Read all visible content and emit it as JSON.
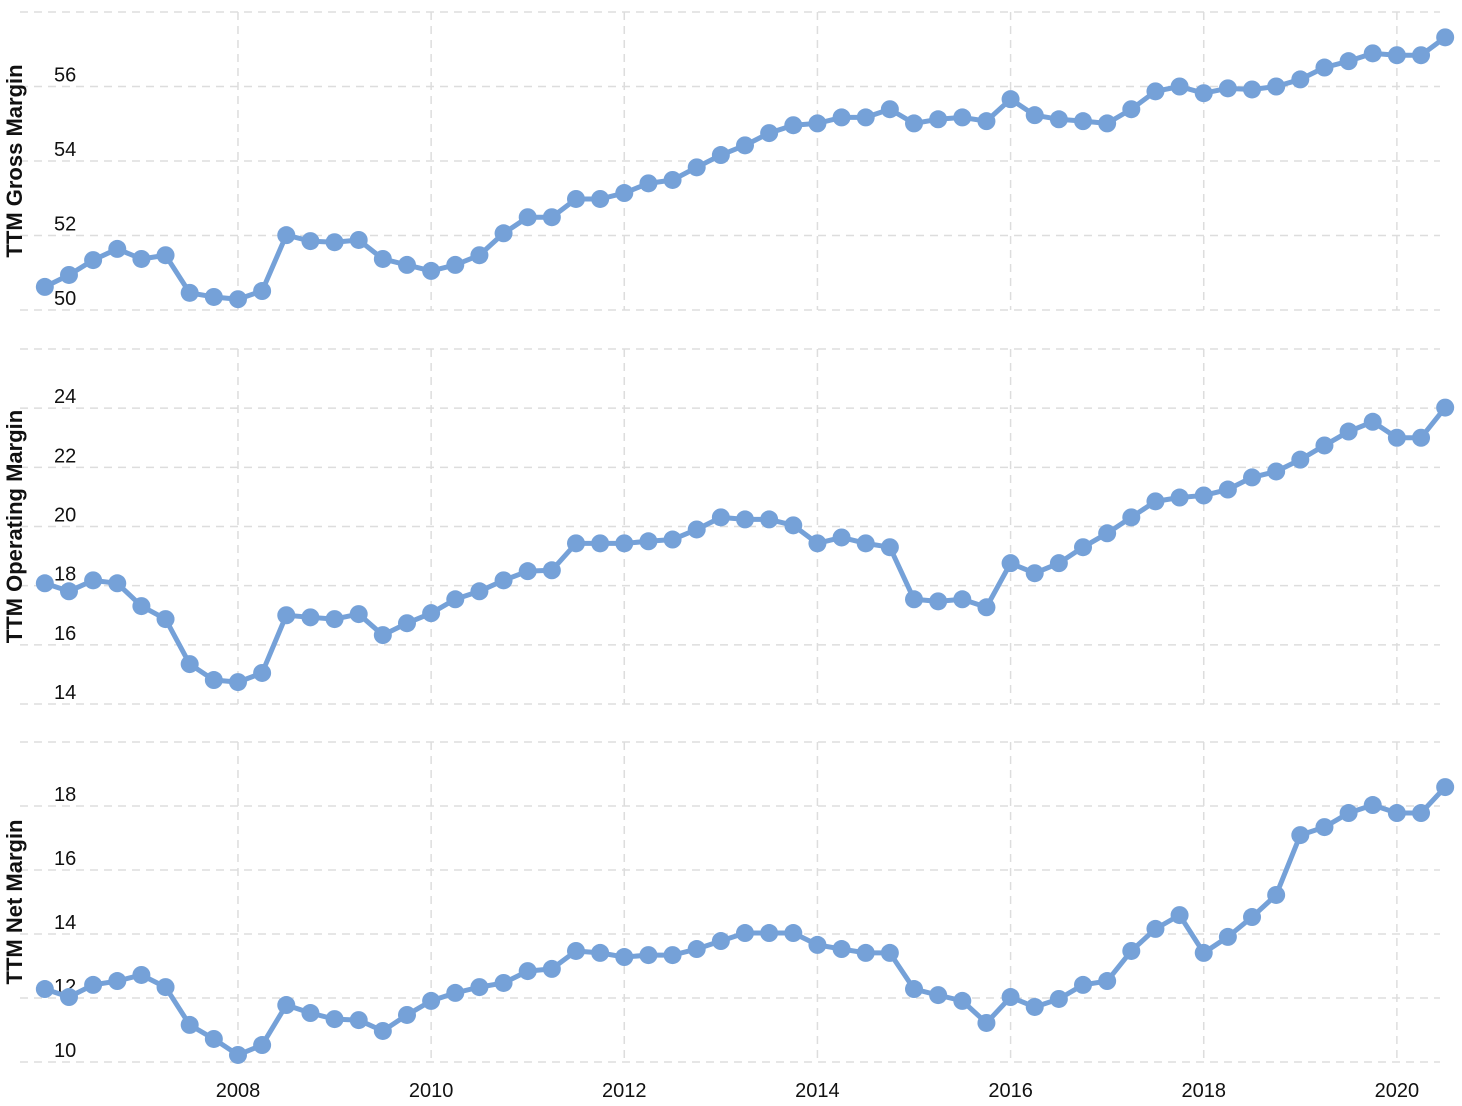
{
  "chart_data": [
    {
      "type": "line",
      "ylabel": "TTM Gross Margin",
      "color": "#75a1d8",
      "grid": true,
      "x": [
        2006,
        2006.25,
        2006.5,
        2006.75,
        2007,
        2007.25,
        2007.5,
        2007.75,
        2008,
        2008.25,
        2008.5,
        2008.75,
        2009,
        2009.25,
        2009.5,
        2009.75,
        2010,
        2010.25,
        2010.5,
        2010.75,
        2011,
        2011.25,
        2011.5,
        2011.75,
        2012,
        2012.25,
        2012.5,
        2012.75,
        2013,
        2013.25,
        2013.5,
        2013.75,
        2014,
        2014.25,
        2014.5,
        2014.75,
        2015,
        2015.25,
        2015.5,
        2015.75,
        2016,
        2016.25,
        2016.5,
        2016.75,
        2017,
        2017.25,
        2017.5,
        2017.75,
        2018,
        2018.25,
        2018.5,
        2018.75,
        2019,
        2019.25,
        2019.5,
        2019.75,
        2020,
        2020.25,
        2020.5
      ],
      "values": [
        50.62,
        50.94,
        51.34,
        51.64,
        51.37,
        51.47,
        50.46,
        50.35,
        50.29,
        50.51,
        52.01,
        51.85,
        51.82,
        51.88,
        51.37,
        51.21,
        51.05,
        51.21,
        51.47,
        52.06,
        52.49,
        52.49,
        52.98,
        52.98,
        53.14,
        53.4,
        53.49,
        53.83,
        54.16,
        54.42,
        54.75,
        54.96,
        55.01,
        55.17,
        55.17,
        55.39,
        55.01,
        55.12,
        55.17,
        55.07,
        55.66,
        55.23,
        55.12,
        55.07,
        55.01,
        55.39,
        55.87,
        56.0,
        55.82,
        55.95,
        55.92,
        56.0,
        56.19,
        56.51,
        56.68,
        56.89,
        56.84,
        56.84,
        57.32
      ],
      "xlim": [
        2005.95,
        2020.55
      ],
      "ylim": [
        50,
        58
      ],
      "yticks": [
        50,
        52,
        54,
        56
      ]
    },
    {
      "type": "line",
      "ylabel": "TTM Operating Margin",
      "color": "#75a1d8",
      "grid": true,
      "x": [
        2006,
        2006.25,
        2006.5,
        2006.75,
        2007,
        2007.25,
        2007.5,
        2007.75,
        2008,
        2008.25,
        2008.5,
        2008.75,
        2009,
        2009.25,
        2009.5,
        2009.75,
        2010,
        2010.25,
        2010.5,
        2010.75,
        2011,
        2011.25,
        2011.5,
        2011.75,
        2012,
        2012.25,
        2012.5,
        2012.75,
        2013,
        2013.25,
        2013.5,
        2013.75,
        2014,
        2014.25,
        2014.5,
        2014.75,
        2015,
        2015.25,
        2015.5,
        2015.75,
        2016,
        2016.25,
        2016.5,
        2016.75,
        2017,
        2017.25,
        2017.5,
        2017.75,
        2018,
        2018.25,
        2018.5,
        2018.75,
        2019,
        2019.25,
        2019.5,
        2019.75,
        2020,
        2020.25,
        2020.5
      ],
      "values": [
        18.08,
        17.81,
        18.18,
        18.08,
        17.31,
        16.87,
        15.35,
        14.81,
        14.74,
        15.05,
        17.0,
        16.93,
        16.87,
        17.04,
        16.33,
        16.73,
        17.07,
        17.54,
        17.81,
        18.18,
        18.49,
        18.52,
        19.43,
        19.43,
        19.43,
        19.5,
        19.56,
        19.9,
        20.31,
        20.24,
        20.24,
        20.04,
        19.43,
        19.63,
        19.43,
        19.3,
        17.54,
        17.47,
        17.54,
        17.27,
        18.76,
        18.42,
        18.76,
        19.3,
        19.77,
        20.31,
        20.85,
        20.98,
        21.05,
        21.25,
        21.66,
        21.86,
        22.26,
        22.74,
        23.21,
        23.54,
        23.0,
        23.0,
        24.02
      ],
      "xlim": [
        2005.95,
        2020.55
      ],
      "ylim": [
        14,
        26
      ],
      "yticks": [
        14,
        16,
        18,
        20,
        22,
        24
      ]
    },
    {
      "type": "line",
      "ylabel": "TTM Net Margin",
      "color": "#75a1d8",
      "grid": true,
      "x": [
        2006,
        2006.25,
        2006.5,
        2006.75,
        2007,
        2007.25,
        2007.5,
        2007.75,
        2008,
        2008.25,
        2008.5,
        2008.75,
        2009,
        2009.25,
        2009.5,
        2009.75,
        2010,
        2010.25,
        2010.5,
        2010.75,
        2011,
        2011.25,
        2011.5,
        2011.75,
        2012,
        2012.25,
        2012.5,
        2012.75,
        2013,
        2013.25,
        2013.5,
        2013.75,
        2014,
        2014.25,
        2014.5,
        2014.75,
        2015,
        2015.25,
        2015.5,
        2015.75,
        2016,
        2016.25,
        2016.5,
        2016.75,
        2017,
        2017.25,
        2017.5,
        2017.75,
        2018,
        2018.25,
        2018.5,
        2018.75,
        2019,
        2019.25,
        2019.5,
        2019.75,
        2020,
        2020.25,
        2020.5
      ],
      "values": [
        12.28,
        12.03,
        12.41,
        12.53,
        12.72,
        12.34,
        11.16,
        10.72,
        10.22,
        10.53,
        11.78,
        11.53,
        11.34,
        11.31,
        10.97,
        11.47,
        11.91,
        12.16,
        12.34,
        12.47,
        12.84,
        12.91,
        13.47,
        13.41,
        13.28,
        13.34,
        13.34,
        13.53,
        13.78,
        14.03,
        14.03,
        14.03,
        13.66,
        13.53,
        13.41,
        13.41,
        12.28,
        12.09,
        11.91,
        11.22,
        12.03,
        11.72,
        11.97,
        12.41,
        12.53,
        13.47,
        14.16,
        14.59,
        13.41,
        13.91,
        14.53,
        15.22,
        17.09,
        17.34,
        17.78,
        18.03,
        17.78,
        17.78,
        18.59
      ],
      "xlim": [
        2005.95,
        2020.55
      ],
      "ylim": [
        10,
        20
      ],
      "yticks": [
        10,
        12,
        14,
        16,
        18
      ],
      "xticks": [
        2008,
        2010,
        2012,
        2014,
        2016,
        2018,
        2020
      ]
    }
  ]
}
